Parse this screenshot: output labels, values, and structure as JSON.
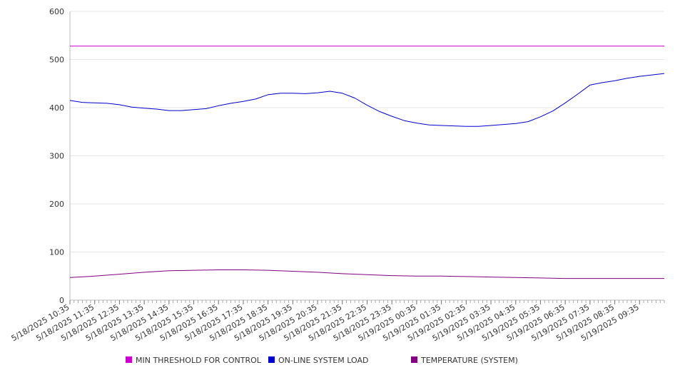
{
  "chart_data": {
    "type": "line",
    "title": "",
    "xlabel": "",
    "ylabel": "",
    "ylim": [
      0,
      600
    ],
    "y_ticks": [
      0,
      100,
      200,
      300,
      400,
      500,
      600
    ],
    "grid": "horizontal",
    "legend_position": "bottom",
    "x_range": [
      "5/18/2025 10:35",
      "5/19/2025 10:35"
    ],
    "x_tick_labels": [
      "5/18/2025 10:35",
      "5/18/2025 11:35",
      "5/18/2025 12:35",
      "5/18/2025 13:35",
      "5/18/2025 14:35",
      "5/18/2025 15:35",
      "5/18/2025 16:35",
      "5/18/2025 17:35",
      "5/18/2025 18:35",
      "5/18/2025 19:35",
      "5/18/2025 20:35",
      "5/18/2025 21:35",
      "5/18/2025 22:35",
      "5/18/2025 23:35",
      "5/19/2025 00:35",
      "5/19/2025 01:35",
      "5/19/2025 02:35",
      "5/19/2025 03:35",
      "5/19/2025 04:35",
      "5/19/2025 05:35",
      "5/19/2025 06:35",
      "5/19/2025 07:35",
      "5/19/2025 08:35",
      "5/19/2025 09:35"
    ],
    "series": [
      {
        "name": "MIN THRESHOLD FOR CONTROL",
        "color": "#cc00cc",
        "points": [
          [
            "5/18/2025 10:35",
            528
          ],
          [
            "5/19/2025 10:35",
            528
          ]
        ]
      },
      {
        "name": "ON-LINE SYSTEM LOAD",
        "color": "#0000cc",
        "points": [
          [
            "5/18/2025 10:35",
            415
          ],
          [
            "5/18/2025 11:05",
            411
          ],
          [
            "5/18/2025 11:35",
            410
          ],
          [
            "5/18/2025 12:05",
            409
          ],
          [
            "5/18/2025 12:35",
            406
          ],
          [
            "5/18/2025 13:05",
            401
          ],
          [
            "5/18/2025 13:35",
            399
          ],
          [
            "5/18/2025 14:05",
            397
          ],
          [
            "5/18/2025 14:35",
            394
          ],
          [
            "5/18/2025 15:05",
            394
          ],
          [
            "5/18/2025 15:35",
            396
          ],
          [
            "5/18/2025 16:05",
            398
          ],
          [
            "5/18/2025 16:35",
            404
          ],
          [
            "5/18/2025 17:05",
            409
          ],
          [
            "5/18/2025 17:35",
            413
          ],
          [
            "5/18/2025 18:05",
            418
          ],
          [
            "5/18/2025 18:35",
            427
          ],
          [
            "5/18/2025 19:05",
            430
          ],
          [
            "5/18/2025 19:35",
            430
          ],
          [
            "5/18/2025 20:05",
            429
          ],
          [
            "5/18/2025 20:35",
            431
          ],
          [
            "5/18/2025 21:05",
            434
          ],
          [
            "5/18/2025 21:35",
            430
          ],
          [
            "5/18/2025 22:05",
            420
          ],
          [
            "5/18/2025 22:35",
            405
          ],
          [
            "5/18/2025 23:05",
            392
          ],
          [
            "5/18/2025 23:35",
            382
          ],
          [
            "5/19/2025 00:05",
            373
          ],
          [
            "5/19/2025 00:35",
            368
          ],
          [
            "5/19/2025 01:05",
            364
          ],
          [
            "5/19/2025 01:35",
            363
          ],
          [
            "5/19/2025 02:05",
            362
          ],
          [
            "5/19/2025 02:35",
            361
          ],
          [
            "5/19/2025 03:05",
            361
          ],
          [
            "5/19/2025 03:35",
            363
          ],
          [
            "5/19/2025 04:05",
            365
          ],
          [
            "5/19/2025 04:35",
            367
          ],
          [
            "5/19/2025 05:05",
            371
          ],
          [
            "5/19/2025 05:35",
            381
          ],
          [
            "5/19/2025 06:05",
            393
          ],
          [
            "5/19/2025 06:35",
            410
          ],
          [
            "5/19/2025 07:05",
            428
          ],
          [
            "5/19/2025 07:35",
            447
          ],
          [
            "5/19/2025 08:05",
            452
          ],
          [
            "5/19/2025 08:35",
            456
          ],
          [
            "5/19/2025 09:05",
            461
          ],
          [
            "5/19/2025 09:35",
            465
          ],
          [
            "5/19/2025 10:05",
            468
          ],
          [
            "5/19/2025 10:35",
            471
          ]
        ]
      },
      {
        "name": "TEMPERATURE (SYSTEM)",
        "color": "#800080",
        "points": [
          [
            "5/18/2025 10:35",
            47
          ],
          [
            "5/18/2025 11:35",
            50
          ],
          [
            "5/18/2025 12:35",
            54
          ],
          [
            "5/18/2025 13:35",
            58
          ],
          [
            "5/18/2025 14:35",
            61
          ],
          [
            "5/18/2025 15:35",
            62
          ],
          [
            "5/18/2025 16:35",
            63
          ],
          [
            "5/18/2025 17:35",
            63
          ],
          [
            "5/18/2025 18:35",
            62
          ],
          [
            "5/18/2025 19:35",
            60
          ],
          [
            "5/18/2025 20:35",
            58
          ],
          [
            "5/18/2025 21:35",
            55
          ],
          [
            "5/18/2025 22:35",
            53
          ],
          [
            "5/18/2025 23:35",
            51
          ],
          [
            "5/19/2025 00:35",
            50
          ],
          [
            "5/19/2025 01:35",
            50
          ],
          [
            "5/19/2025 02:35",
            49
          ],
          [
            "5/19/2025 03:35",
            48
          ],
          [
            "5/19/2025 04:35",
            47
          ],
          [
            "5/19/2025 05:35",
            46
          ],
          [
            "5/19/2025 06:35",
            45
          ],
          [
            "5/19/2025 07:35",
            45
          ],
          [
            "5/19/2025 08:35",
            45
          ],
          [
            "5/19/2025 09:35",
            45
          ],
          [
            "5/19/2025 10:35",
            45
          ]
        ]
      }
    ]
  }
}
